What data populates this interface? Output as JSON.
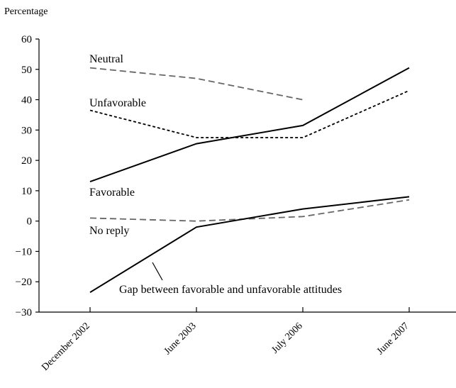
{
  "chart_data": {
    "type": "line",
    "ylabel": "Percentage",
    "ylim": [
      -30,
      60
    ],
    "yticks": [
      "60",
      "50",
      "40",
      "30",
      "20",
      "10",
      "0",
      "−10",
      "−20",
      "−30"
    ],
    "categories": [
      "December 2002",
      "June 2003",
      "July 2006",
      "June 2007"
    ],
    "grid": false,
    "series": [
      {
        "name": "Neutral",
        "values": [
          50.5,
          47,
          40,
          null
        ],
        "style": "dashed",
        "color": "#666666"
      },
      {
        "name": "Unfavorable",
        "values": [
          36.5,
          27.5,
          27.5,
          43
        ],
        "style": "dotted",
        "color": "#000000"
      },
      {
        "name": "Favorable",
        "values": [
          13,
          25.5,
          31.5,
          50.5
        ],
        "style": "solid",
        "color": "#000000"
      },
      {
        "name": "No reply",
        "values": [
          1,
          0,
          1.5,
          7
        ],
        "style": "dashed",
        "color": "#666666"
      },
      {
        "name": "Gap between favorable and unfavorable attitudes",
        "values": [
          -23.5,
          -2,
          4,
          8
        ],
        "style": "solid",
        "color": "#000000"
      }
    ],
    "annotations": [
      "Neutral",
      "Unfavorable",
      "Favorable",
      "No reply",
      "Gap between favorable and unfavorable attitudes"
    ]
  }
}
